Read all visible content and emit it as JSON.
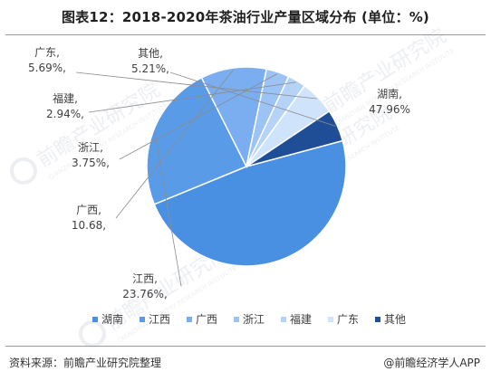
{
  "page": {
    "title": "图表12：2018-2020年茶油行业产量区域分布 (单位：%)",
    "source": "资料来源：前瞻产业研究院整理",
    "credit": "@前瞻经济学人APP",
    "credit_logo": "logo-icon"
  },
  "watermark": {
    "text": "前瞻产业研究院",
    "subtext": "QIANZHAN INDUSTRY RESEARCH INSTITUTE"
  },
  "chart_data": {
    "type": "pie",
    "title": "图表12：2018-2020年茶油行业产量区域分布 (单位：%)",
    "legend_position": "bottom",
    "start_angle_deg": -15,
    "direction": "clockwise",
    "slices": [
      {
        "name": "湖南",
        "value": 47.96,
        "label_name": "湖南,",
        "label_value": "47.96%",
        "color": "#4a90e2"
      },
      {
        "name": "江西",
        "value": 23.76,
        "label_name": "江西,",
        "label_value": "23.76%,",
        "color": "#5a9be8"
      },
      {
        "name": "广西",
        "value": 10.68,
        "label_name": "广西,",
        "label_value": "10.68,",
        "color": "#7aaef0"
      },
      {
        "name": "浙江",
        "value": 3.75,
        "label_name": "浙江,",
        "label_value": "3.75%,",
        "color": "#9cc3f4"
      },
      {
        "name": "福建",
        "value": 2.94,
        "label_name": "福建,",
        "label_value": "2.94%,",
        "color": "#b5d3f7"
      },
      {
        "name": "广东",
        "value": 5.69,
        "label_name": "广东,",
        "label_value": "5.69%,",
        "color": "#cfe3fb"
      },
      {
        "name": "其他",
        "value": 5.21,
        "label_name": "其他,",
        "label_value": "5.21%,",
        "color": "#1f4e96"
      }
    ]
  }
}
